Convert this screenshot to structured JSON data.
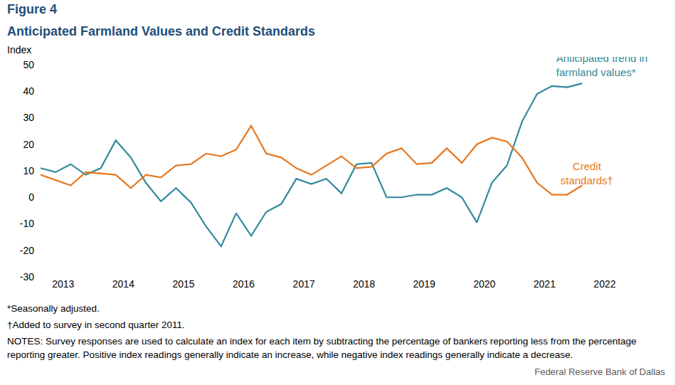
{
  "chart_data": {
    "type": "line",
    "title": "Figure 4",
    "subtitle": "Anticipated Farmland Values and Credit Standards",
    "y_label": "Index",
    "categories": [
      "2013",
      null,
      null,
      null,
      "2014",
      null,
      null,
      null,
      "2015",
      null,
      null,
      null,
      "2016",
      null,
      null,
      null,
      "2017",
      null,
      null,
      null,
      "2018",
      null,
      null,
      null,
      "2019",
      null,
      null,
      null,
      "2020",
      null,
      null,
      null,
      "2021",
      null,
      null,
      null,
      "2022"
    ],
    "series": [
      {
        "name": "Anticipated trend in farmland values*",
        "color": "#31899a",
        "values": [
          11,
          9.5,
          12.5,
          8.5,
          11,
          21.5,
          15,
          5.5,
          -1.5,
          3.5,
          -2,
          -11,
          -18.5,
          -6,
          -14.5,
          -5.5,
          -2.5,
          7,
          5,
          7,
          1.5,
          12.5,
          13,
          0,
          0,
          1,
          1,
          3.5,
          0,
          -9.5,
          5.5,
          12,
          28.5,
          39,
          42,
          41.5,
          43
        ]
      },
      {
        "name": "Credit standards†",
        "color": "#e8771e",
        "values": [
          8.5,
          6.5,
          4.5,
          9.5,
          9,
          8.5,
          3.5,
          8.5,
          7.5,
          12,
          12.5,
          16.5,
          15.5,
          18,
          27,
          16.5,
          15,
          11,
          8.5,
          12,
          15.5,
          11,
          11.5,
          16.5,
          18.5,
          12.5,
          13,
          18.5,
          13,
          20,
          22.5,
          21,
          15,
          5.5,
          1,
          1,
          4.5
        ]
      }
    ],
    "ylim": [
      -30,
      50
    ],
    "yticks": [
      -30,
      -20,
      -10,
      0,
      10,
      20,
      30,
      40,
      50
    ],
    "grid": false,
    "notes": [
      "*Seasonally adjusted.",
      "†Added to survey in second quarter 2011.",
      "NOTES: Survey responses are used to calculate an index for each item by subtracting the percentage of bankers reporting less from the percentage reporting greater. Positive index readings generally indicate an increase, while negative index readings generally indicate a decrease."
    ],
    "source": "Federal Reserve Bank of Dallas"
  }
}
